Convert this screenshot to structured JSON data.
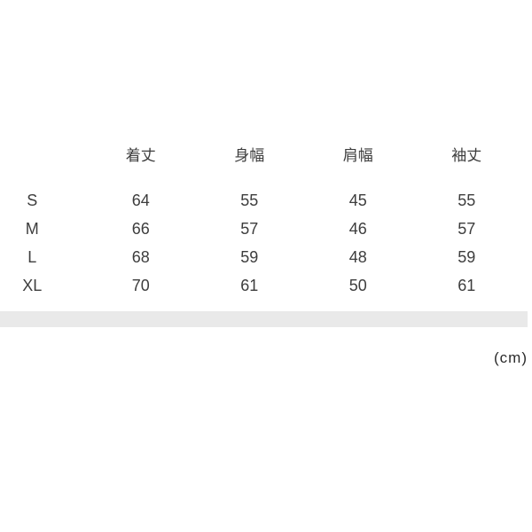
{
  "chart_data": {
    "type": "table",
    "title": "",
    "columns": [
      "着丈",
      "身幅",
      "肩幅",
      "袖丈"
    ],
    "rows": [
      {
        "size": "S",
        "values": [
          64,
          55,
          45,
          55
        ]
      },
      {
        "size": "M",
        "values": [
          66,
          57,
          46,
          57
        ]
      },
      {
        "size": "L",
        "values": [
          68,
          59,
          48,
          59
        ]
      },
      {
        "size": "XL",
        "values": [
          70,
          61,
          50,
          61
        ]
      }
    ],
    "unit": "(cm)"
  },
  "colors": {
    "background": "#ffffff",
    "text": "#3d3d3d",
    "divider_bar": "#e9e9e9"
  }
}
